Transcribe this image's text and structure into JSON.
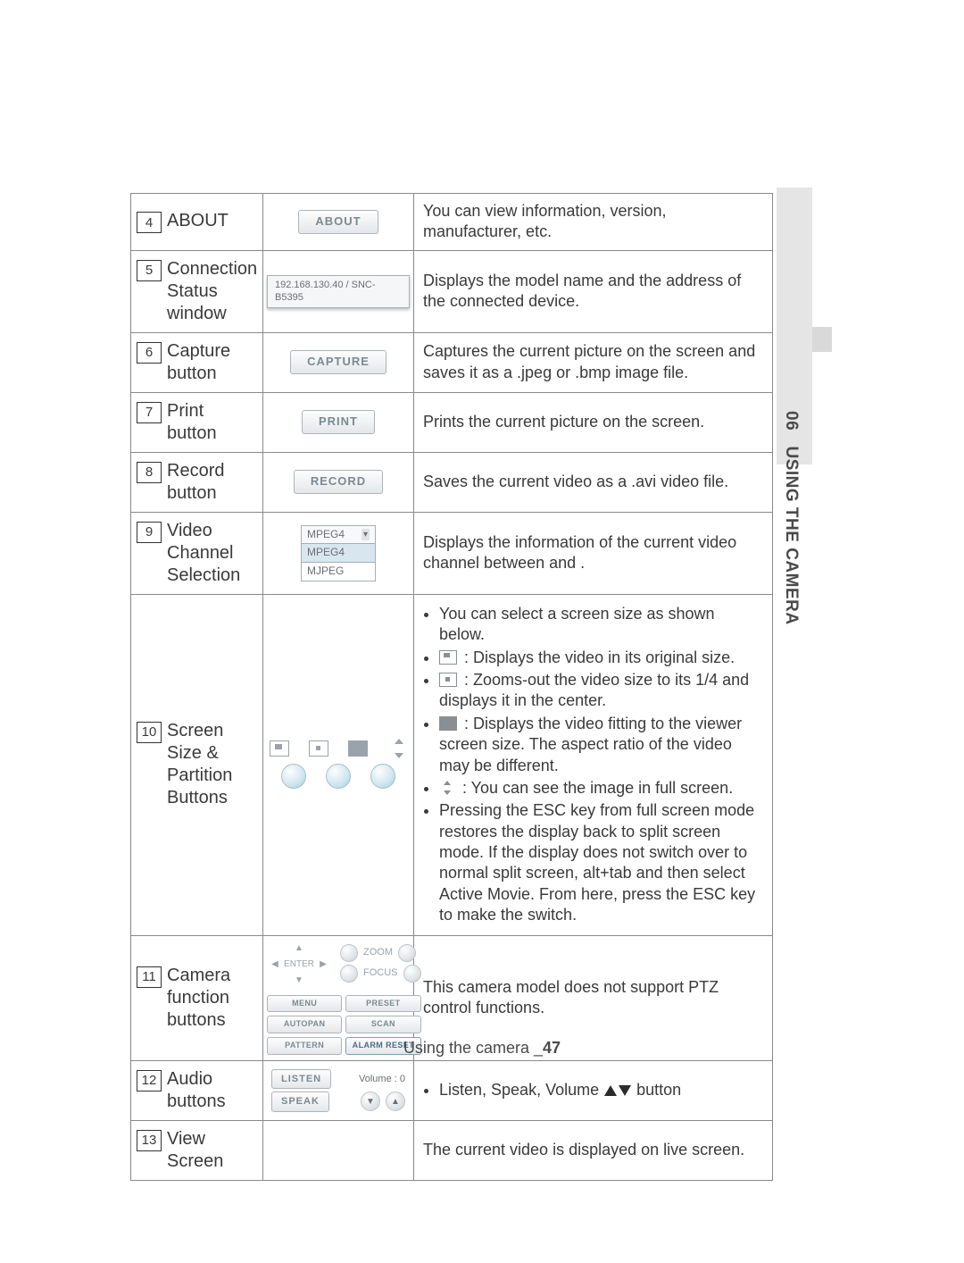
{
  "side": {
    "section_number": "06",
    "section_title": "USING THE CAMERA",
    "stripe_color": "#e5e5e5",
    "accent_color": "#d9d9d9"
  },
  "footer": {
    "text": "Using the camera _",
    "page": "47"
  },
  "colors": {
    "border": "#8a8a8a",
    "text": "#3a3a3a",
    "btn_text": "#7a8a92",
    "icon": "#9aa3aa"
  },
  "rows": [
    {
      "num": "4",
      "label": "ABOUT",
      "graphic": {
        "kind": "button",
        "text": "ABOUT"
      },
      "desc_plain": "You can view information, version, manufacturer, etc."
    },
    {
      "num": "5",
      "label": "Connection Status window",
      "graphic": {
        "kind": "field",
        "text": "192.168.130.40 / SNC-B5395"
      },
      "desc_plain": "Displays the model name and the address of the connected device."
    },
    {
      "num": "6",
      "label": "Capture button",
      "graphic": {
        "kind": "button",
        "text": "CAPTURE"
      },
      "desc_plain": "Captures the current picture on the screen and saves it as a .jpeg or .bmp image file."
    },
    {
      "num": "7",
      "label": "Print button",
      "graphic": {
        "kind": "button",
        "text": "PRINT"
      },
      "desc_plain": "Prints the current picture on the screen."
    },
    {
      "num": "8",
      "label": "Record button",
      "graphic": {
        "kind": "button",
        "text": "RECORD"
      },
      "desc_plain": "Saves the current video as a .avi video file."
    },
    {
      "num": "9",
      "label": "Video Channel Selection",
      "graphic": {
        "kind": "select",
        "selected": "MPEG4",
        "options": [
          "MPEG4",
          "MJPEG"
        ]
      },
      "desc_plain": "Displays the information of the current video channel between <MJPEG> and <MPEG4>."
    },
    {
      "num": "10",
      "label": "Screen Size & Partition Buttons",
      "graphic": {
        "kind": "screensize"
      },
      "desc_list": {
        "intro": "You can select a screen size as shown below.",
        "items": [
          {
            "icon": "inner",
            "text": ": Displays the video in its original size."
          },
          {
            "icon": "center",
            "text": ": Zooms-out the video size to its 1/4 and displays it in the center."
          },
          {
            "icon": "fill",
            "text": ": Displays the video fitting to the viewer screen size. The aspect ratio of the video may be different."
          },
          {
            "icon": "arrows",
            "text": ": You can see the image in full screen."
          }
        ],
        "tail": "Pressing the ESC key from full screen mode restores the display back to split screen mode. If the display does not switch over to normal split screen, alt+tab and then select Active Movie. From here, press the ESC key to make the switch."
      }
    },
    {
      "num": "11",
      "label": "Camera function buttons",
      "graphic": {
        "kind": "camera_panel",
        "dpad_center": "ENTER",
        "zoom_label": "ZOOM",
        "focus_label": "FOCUS",
        "buttons": [
          "MENU",
          "PRESET",
          "AUTOPAN",
          "SCAN",
          "PATTERN",
          "ALARM RESET"
        ],
        "active_button": "ALARM RESET"
      },
      "desc_plain": "This camera model does not support PTZ control functions."
    },
    {
      "num": "12",
      "label": "Audio buttons",
      "graphic": {
        "kind": "audio_panel",
        "listen": "LISTEN",
        "speak": "SPEAK",
        "volume_label": "Volume : 0"
      },
      "desc_audiobullet": {
        "prefix": "Listen, Speak, Volume ",
        "suffix": " button"
      }
    },
    {
      "num": "13",
      "label": "View Screen",
      "graphic": {
        "kind": "blank"
      },
      "desc_plain": "The current video is displayed on live screen."
    }
  ]
}
